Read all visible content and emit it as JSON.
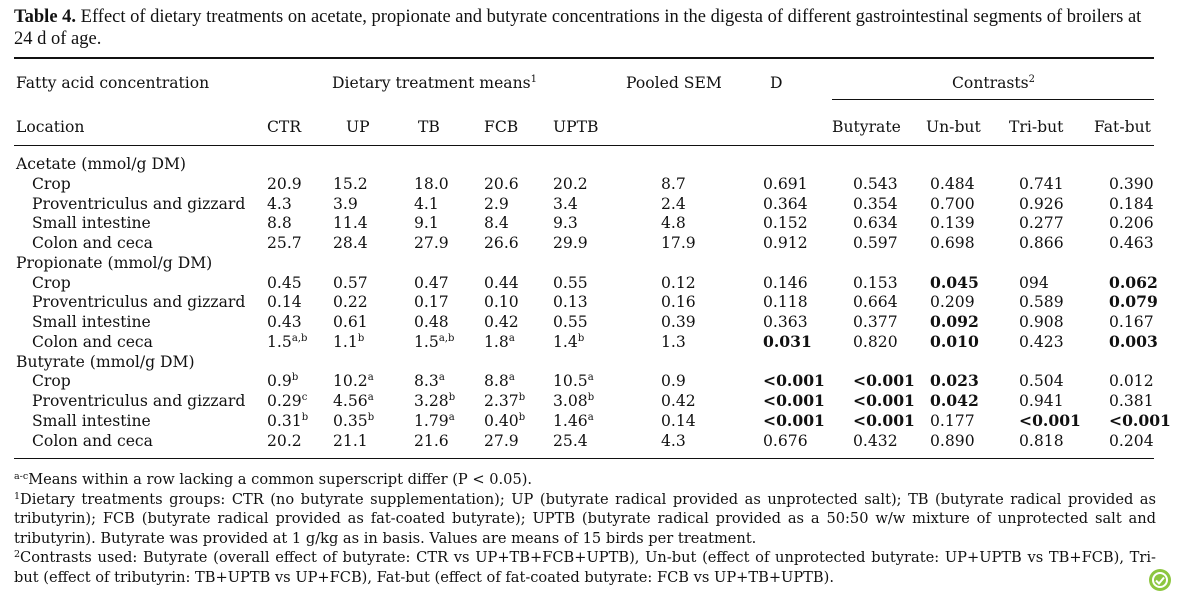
{
  "caption": {
    "label": "Table 4.",
    "text": "Effect of dietary treatments on acetate, propionate and butyrate concentrations in the digesta of different gastrointestinal segments of broilers at 24 d of age."
  },
  "header": {
    "row1": {
      "fatty_acid": "Fatty acid concentration",
      "means": "Dietary treatment means",
      "means_sup": "1",
      "sem": "Pooled SEM",
      "d": "D",
      "contrasts": "Contrasts",
      "contrasts_sup": "2"
    },
    "row2": {
      "location": "Location",
      "ctr": "CTR",
      "up": "UP",
      "tb": "TB",
      "fcb": "FCB",
      "uptb": "UPTB",
      "butyrate": "Butyrate",
      "unbut": "Un-but",
      "tribut": "Tri-but",
      "fatbut": "Fat-but"
    }
  },
  "sections": [
    {
      "title": "Acetate (mmol/g DM)",
      "rows": [
        {
          "loc": "Crop",
          "ctr": "20.9",
          "up": "15.2",
          "tb": "18.0",
          "fcb": "20.6",
          "uptb": "20.2",
          "sem": "8.7",
          "d": "0.691",
          "butyrate": "0.543",
          "unbut": "0.484",
          "tribut": "0.741",
          "fatbut": "0.390"
        },
        {
          "loc": "Proventriculus and gizzard",
          "ctr": "4.3",
          "up": "3.9",
          "tb": "4.1",
          "fcb": "2.9",
          "uptb": "3.4",
          "sem": "2.4",
          "d": "0.364",
          "butyrate": "0.354",
          "unbut": "0.700",
          "tribut": "0.926",
          "fatbut": "0.184"
        },
        {
          "loc": "Small intestine",
          "ctr": "8.8",
          "up": "11.4",
          "tb": "9.1",
          "fcb": "8.4",
          "uptb": "9.3",
          "sem": "4.8",
          "d": "0.152",
          "butyrate": "0.634",
          "unbut": "0.139",
          "tribut": "0.277",
          "fatbut": "0.206"
        },
        {
          "loc": "Colon and ceca",
          "ctr": "25.7",
          "up": "28.4",
          "tb": "27.9",
          "fcb": "26.6",
          "uptb": "29.9",
          "sem": "17.9",
          "d": "0.912",
          "butyrate": "0.597",
          "unbut": "0.698",
          "tribut": "0.866",
          "fatbut": "0.463"
        }
      ]
    },
    {
      "title": "Propionate (mmol/g DM)",
      "rows": [
        {
          "loc": "Crop",
          "ctr": "0.45",
          "up": "0.57",
          "tb": "0.47",
          "fcb": "0.44",
          "uptb": "0.55",
          "sem": "0.12",
          "d": "0.146",
          "butyrate": "0.153",
          "unbut": "0.045",
          "unbut_bold": true,
          "tribut": "094",
          "fatbut": "0.062",
          "fatbut_bold": true
        },
        {
          "loc": "Proventriculus and gizzard",
          "ctr": "0.14",
          "up": "0.22",
          "tb": "0.17",
          "fcb": "0.10",
          "uptb": "0.13",
          "sem": "0.16",
          "d": "0.118",
          "butyrate": "0.664",
          "unbut": "0.209",
          "tribut": "0.589",
          "fatbut": "0.079",
          "fatbut_bold": true
        },
        {
          "loc": "Small intestine",
          "ctr": "0.43",
          "up": "0.61",
          "tb": "0.48",
          "fcb": "0.42",
          "uptb": "0.55",
          "sem": "0.39",
          "d": "0.363",
          "butyrate": "0.377",
          "unbut": "0.092",
          "unbut_bold": true,
          "tribut": "0.908",
          "fatbut": "0.167"
        },
        {
          "loc": "Colon and ceca",
          "ctr": "1.5",
          "ctr_sup": "a,b",
          "up": "1.1",
          "up_sup": "b",
          "tb": "1.5",
          "tb_sup": "a,b",
          "fcb": "1.8",
          "fcb_sup": "a",
          "uptb": "1.4",
          "uptb_sup": "b",
          "sem": "1.3",
          "d": "0.031",
          "d_bold": true,
          "butyrate": "0.820",
          "unbut": "0.010",
          "unbut_bold": true,
          "tribut": "0.423",
          "fatbut": "0.003",
          "fatbut_bold": true
        }
      ]
    },
    {
      "title": "Butyrate (mmol/g DM)",
      "rows": [
        {
          "loc": "Crop",
          "ctr": "0.9",
          "ctr_sup": "b",
          "up": "10.2",
          "up_sup": "a",
          "tb": "8.3",
          "tb_sup": "a",
          "fcb": "8.8",
          "fcb_sup": "a",
          "uptb": "10.5",
          "uptb_sup": "a",
          "sem": "0.9",
          "d": "<0.001",
          "d_bold": true,
          "butyrate": "<0.001",
          "butyrate_bold": true,
          "unbut": "0.023",
          "unbut_bold": true,
          "tribut": "0.504",
          "fatbut": "0.012"
        },
        {
          "loc": "Proventriculus and gizzard",
          "ctr": "0.29",
          "ctr_sup": "c",
          "up": "4.56",
          "up_sup": "a",
          "tb": "3.28",
          "tb_sup": "b",
          "fcb": "2.37",
          "fcb_sup": "b",
          "uptb": "3.08",
          "uptb_sup": "b",
          "sem": "0.42",
          "d": "<0.001",
          "d_bold": true,
          "butyrate": "<0.001",
          "butyrate_bold": true,
          "unbut": "0.042",
          "unbut_bold": true,
          "tribut": "0.941",
          "fatbut": "0.381"
        },
        {
          "loc": "Small intestine",
          "ctr": "0.31",
          "ctr_sup": "b",
          "up": "0.35",
          "up_sup": "b",
          "tb": "1.79",
          "tb_sup": "a",
          "fcb": "0.40",
          "fcb_sup": "b",
          "uptb": "1.46",
          "uptb_sup": "a",
          "sem": "0.14",
          "d": "<0.001",
          "d_bold": true,
          "butyrate": "<0.001",
          "butyrate_bold": true,
          "unbut": "0.177",
          "tribut": "<0.001",
          "tribut_bold": true,
          "fatbut": "<0.001",
          "fatbut_bold": true
        },
        {
          "loc": "Colon and ceca",
          "ctr": "20.2",
          "up": "21.1",
          "tb": "21.6",
          "fcb": "27.9",
          "uptb": "25.4",
          "sem": "4.3",
          "d": "0.676",
          "butyrate": "0.432",
          "unbut": "0.890",
          "tribut": "0.818",
          "fatbut": "0.204"
        }
      ]
    }
  ],
  "footnotes": {
    "means_sup": "a-c",
    "means_text": "Means within a row lacking a common superscript differ (P < 0.05).",
    "one_sup": "1",
    "one_text": "Dietary treatments groups: CTR (no butyrate supplementation); UP (butyrate radical provided as unprotected salt); TB (butyrate radical provided as tributyrin); FCB (butyrate radical provided as fat-coated butyrate); UPTB (butyrate radical provided as a 50:50 w/w mixture of unprotected salt and tributyrin). Butyrate was provided at 1 g/kg as in basis. Values are means of 15 birds per treatment.",
    "two_sup": "2",
    "two_text": "Contrasts used: Butyrate (overall effect of butyrate: CTR vs UP+TB+FCB+UPTB), Un-but (effect of unprotected butyrate: UP+UPTB vs TB+FCB), Tri-but (effect of tributyrin: TB+UPTB vs UP+FCB), Fat-but (effect of fat-coated butyrate: FCB vs UP+TB+UPTB)."
  },
  "logo": {
    "icon": "publisher-logo-icon",
    "color": "#8dc63f"
  }
}
